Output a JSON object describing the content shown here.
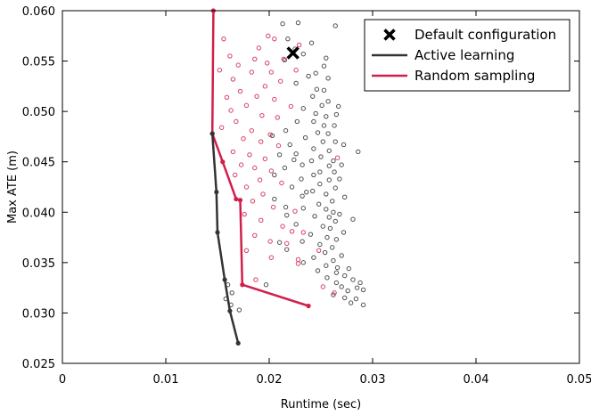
{
  "chart_data": {
    "type": "scatter",
    "xlabel": "Runtime (sec)",
    "ylabel": "Max ATE (m)",
    "xlim": [
      0,
      0.05
    ],
    "ylim": [
      0.025,
      0.06
    ],
    "x_ticks": [
      0,
      0.01,
      0.02,
      0.03,
      0.04,
      0.05
    ],
    "x_tick_labels": [
      "0",
      "0.01",
      "0.02",
      "0.03",
      "0.04",
      "0.05"
    ],
    "y_ticks": [
      0.025,
      0.03,
      0.035,
      0.04,
      0.045,
      0.05,
      0.055,
      0.06
    ],
    "y_tick_labels": [
      "0.025",
      "0.030",
      "0.035",
      "0.040",
      "0.045",
      "0.050",
      "0.055",
      "0.060"
    ],
    "grid": false,
    "legend_position": "top-right",
    "colors": {
      "active": "#333333",
      "random": "#d0204a",
      "marker": "#000000"
    },
    "legend": [
      {
        "label": "Default configuration",
        "kind": "x-marker"
      },
      {
        "label": "Active learning",
        "kind": "line",
        "color": "#333333"
      },
      {
        "label": "Random sampling",
        "kind": "line",
        "color": "#d0204a"
      }
    ],
    "default_configuration": {
      "x": 0.0223,
      "y": 0.0558
    },
    "active_learning_frontier": [
      {
        "x": 0.017,
        "y": 0.027
      },
      {
        "x": 0.0162,
        "y": 0.0302
      },
      {
        "x": 0.0157,
        "y": 0.0333
      },
      {
        "x": 0.015,
        "y": 0.038
      },
      {
        "x": 0.0149,
        "y": 0.042
      },
      {
        "x": 0.0145,
        "y": 0.0478
      }
    ],
    "random_sampling_frontier": [
      {
        "x": 0.0238,
        "y": 0.0307
      },
      {
        "x": 0.0174,
        "y": 0.0328
      },
      {
        "x": 0.0172,
        "y": 0.0412
      },
      {
        "x": 0.0168,
        "y": 0.0413
      },
      {
        "x": 0.0155,
        "y": 0.045
      },
      {
        "x": 0.0145,
        "y": 0.0478
      },
      {
        "x": 0.0146,
        "y": 0.06
      }
    ],
    "series": [
      {
        "name": "Active learning",
        "points": [
          [
            0.0228,
            0.0588
          ],
          [
            0.0213,
            0.0587
          ],
          [
            0.0264,
            0.0585
          ],
          [
            0.0218,
            0.0572
          ],
          [
            0.0241,
            0.0568
          ],
          [
            0.0225,
            0.0562
          ],
          [
            0.0233,
            0.0557
          ],
          [
            0.0215,
            0.0551
          ],
          [
            0.0255,
            0.0553
          ],
          [
            0.0253,
            0.0545
          ],
          [
            0.0245,
            0.0538
          ],
          [
            0.0238,
            0.0535
          ],
          [
            0.0257,
            0.0533
          ],
          [
            0.0226,
            0.0528
          ],
          [
            0.0246,
            0.0522
          ],
          [
            0.0253,
            0.0521
          ],
          [
            0.0242,
            0.0515
          ],
          [
            0.0257,
            0.051
          ],
          [
            0.0251,
            0.0506
          ],
          [
            0.0267,
            0.0505
          ],
          [
            0.0233,
            0.0503
          ],
          [
            0.0245,
            0.0498
          ],
          [
            0.0255,
            0.0495
          ],
          [
            0.0265,
            0.0497
          ],
          [
            0.0243,
            0.049
          ],
          [
            0.0227,
            0.049
          ],
          [
            0.0253,
            0.0486
          ],
          [
            0.0263,
            0.0486
          ],
          [
            0.0216,
            0.0481
          ],
          [
            0.0247,
            0.0479
          ],
          [
            0.0257,
            0.0478
          ],
          [
            0.0203,
            0.0476
          ],
          [
            0.0235,
            0.0474
          ],
          [
            0.0252,
            0.047
          ],
          [
            0.0264,
            0.047
          ],
          [
            0.0272,
            0.0467
          ],
          [
            0.022,
            0.0467
          ],
          [
            0.0243,
            0.0463
          ],
          [
            0.0286,
            0.046
          ],
          [
            0.0258,
            0.0461
          ],
          [
            0.0226,
            0.0458
          ],
          [
            0.021,
            0.0457
          ],
          [
            0.025,
            0.0455
          ],
          [
            0.0241,
            0.0451
          ],
          [
            0.0262,
            0.0451
          ],
          [
            0.0232,
            0.0447
          ],
          [
            0.0258,
            0.0446
          ],
          [
            0.027,
            0.0447
          ],
          [
            0.0215,
            0.0444
          ],
          [
            0.0249,
            0.044
          ],
          [
            0.0263,
            0.044
          ],
          [
            0.0243,
            0.0437
          ],
          [
            0.0205,
            0.0437
          ],
          [
            0.0231,
            0.0433
          ],
          [
            0.0258,
            0.0432
          ],
          [
            0.0268,
            0.0433
          ],
          [
            0.0249,
            0.0428
          ],
          [
            0.0222,
            0.0425
          ],
          [
            0.0264,
            0.0424
          ],
          [
            0.0242,
            0.0421
          ],
          [
            0.0255,
            0.0418
          ],
          [
            0.0232,
            0.0416
          ],
          [
            0.0273,
            0.0415
          ],
          [
            0.0261,
            0.0411
          ],
          [
            0.0248,
            0.0408
          ],
          [
            0.0216,
            0.0405
          ],
          [
            0.0255,
            0.0403
          ],
          [
            0.0262,
            0.04
          ],
          [
            0.0268,
            0.0398
          ],
          [
            0.0244,
            0.0396
          ],
          [
            0.0258,
            0.0395
          ],
          [
            0.0281,
            0.0393
          ],
          [
            0.0264,
            0.0391
          ],
          [
            0.0226,
            0.0388
          ],
          [
            0.0252,
            0.0386
          ],
          [
            0.0259,
            0.0384
          ],
          [
            0.0272,
            0.038
          ],
          [
            0.024,
            0.0378
          ],
          [
            0.0256,
            0.0375
          ],
          [
            0.0265,
            0.0373
          ],
          [
            0.0232,
            0.0371
          ],
          [
            0.0249,
            0.0368
          ],
          [
            0.0261,
            0.0365
          ],
          [
            0.0217,
            0.0363
          ],
          [
            0.0254,
            0.036
          ],
          [
            0.027,
            0.0357
          ],
          [
            0.0243,
            0.0355
          ],
          [
            0.0262,
            0.0352
          ],
          [
            0.0233,
            0.035
          ],
          [
            0.0255,
            0.0347
          ],
          [
            0.0266,
            0.0345
          ],
          [
            0.0277,
            0.0344
          ],
          [
            0.0247,
            0.0342
          ],
          [
            0.0265,
            0.034
          ],
          [
            0.0273,
            0.0337
          ],
          [
            0.0256,
            0.0335
          ],
          [
            0.0281,
            0.0333
          ],
          [
            0.0288,
            0.033
          ],
          [
            0.0265,
            0.033
          ],
          [
            0.027,
            0.0326
          ],
          [
            0.0285,
            0.0325
          ],
          [
            0.0276,
            0.0322
          ],
          [
            0.0291,
            0.0323
          ],
          [
            0.0262,
            0.0318
          ],
          [
            0.0273,
            0.0315
          ],
          [
            0.0284,
            0.0314
          ],
          [
            0.0279,
            0.031
          ],
          [
            0.0291,
            0.0308
          ],
          [
            0.016,
            0.0328
          ],
          [
            0.0164,
            0.032
          ],
          [
            0.0158,
            0.0314
          ],
          [
            0.0171,
            0.0303
          ],
          [
            0.0163,
            0.0308
          ],
          [
            0.0197,
            0.0328
          ],
          [
            0.021,
            0.037
          ],
          [
            0.0217,
            0.0397
          ],
          [
            0.0205,
            0.0413
          ],
          [
            0.0233,
            0.0404
          ],
          [
            0.0224,
            0.0452
          ],
          [
            0.0236,
            0.042
          ]
        ]
      },
      {
        "name": "Random sampling",
        "points": [
          [
            0.0156,
            0.0572
          ],
          [
            0.0199,
            0.0575
          ],
          [
            0.0205,
            0.0572
          ],
          [
            0.019,
            0.0563
          ],
          [
            0.0229,
            0.0566
          ],
          [
            0.0214,
            0.0552
          ],
          [
            0.0162,
            0.0555
          ],
          [
            0.0186,
            0.0552
          ],
          [
            0.0198,
            0.0548
          ],
          [
            0.017,
            0.0546
          ],
          [
            0.0202,
            0.0539
          ],
          [
            0.0152,
            0.0541
          ],
          [
            0.0183,
            0.0539
          ],
          [
            0.0226,
            0.0541
          ],
          [
            0.0165,
            0.0532
          ],
          [
            0.0196,
            0.0525
          ],
          [
            0.0211,
            0.053
          ],
          [
            0.0172,
            0.052
          ],
          [
            0.0188,
            0.0515
          ],
          [
            0.0159,
            0.0514
          ],
          [
            0.0205,
            0.0512
          ],
          [
            0.0178,
            0.0506
          ],
          [
            0.0221,
            0.0505
          ],
          [
            0.0163,
            0.0501
          ],
          [
            0.0193,
            0.0496
          ],
          [
            0.0208,
            0.0494
          ],
          [
            0.0168,
            0.049
          ],
          [
            0.0154,
            0.0484
          ],
          [
            0.0183,
            0.0481
          ],
          [
            0.0201,
            0.0477
          ],
          [
            0.0175,
            0.0473
          ],
          [
            0.0192,
            0.047
          ],
          [
            0.0209,
            0.0466
          ],
          [
            0.0165,
            0.046
          ],
          [
            0.0181,
            0.0457
          ],
          [
            0.0196,
            0.0453
          ],
          [
            0.0173,
            0.0447
          ],
          [
            0.0186,
            0.0444
          ],
          [
            0.0202,
            0.0441
          ],
          [
            0.0167,
            0.0437
          ],
          [
            0.0191,
            0.0432
          ],
          [
            0.0212,
            0.0429
          ],
          [
            0.0178,
            0.0425
          ],
          [
            0.0194,
            0.0418
          ],
          [
            0.0184,
            0.0411
          ],
          [
            0.0204,
            0.0405
          ],
          [
            0.0225,
            0.0401
          ],
          [
            0.0176,
            0.0398
          ],
          [
            0.0192,
            0.0392
          ],
          [
            0.0213,
            0.0386
          ],
          [
            0.0222,
            0.0381
          ],
          [
            0.0186,
            0.0377
          ],
          [
            0.0201,
            0.0371
          ],
          [
            0.0217,
            0.0369
          ],
          [
            0.0178,
            0.0362
          ],
          [
            0.0248,
            0.0362
          ],
          [
            0.0228,
            0.0353
          ],
          [
            0.0202,
            0.0355
          ],
          [
            0.0187,
            0.0333
          ],
          [
            0.0228,
            0.0349
          ],
          [
            0.0252,
            0.0326
          ],
          [
            0.0263,
            0.032
          ],
          [
            0.0233,
            0.038
          ],
          [
            0.0266,
            0.0454
          ]
        ]
      }
    ]
  }
}
